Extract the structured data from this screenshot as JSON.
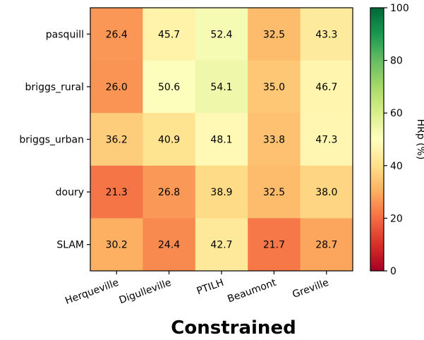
{
  "chart_data": {
    "type": "heatmap",
    "title": "Constrained",
    "columns": [
      "Herqueville",
      "Digulleville",
      "PTILH",
      "Beaumont",
      "Greville"
    ],
    "rows": [
      "pasquill",
      "briggs_rural",
      "briggs_urban",
      "doury",
      "SLAM"
    ],
    "values": [
      [
        26.4,
        45.7,
        52.4,
        32.5,
        43.3
      ],
      [
        26.0,
        50.6,
        54.1,
        35.0,
        46.7
      ],
      [
        36.2,
        40.9,
        48.1,
        33.8,
        47.3
      ],
      [
        21.3,
        26.8,
        38.9,
        32.5,
        38.0
      ],
      [
        30.2,
        24.4,
        42.7,
        21.7,
        28.7
      ]
    ],
    "value_labels": [
      [
        "26.4",
        "45.7",
        "52.4",
        "32.5",
        "43.3"
      ],
      [
        "26.0",
        "50.6",
        "54.1",
        "35.0",
        "46.7"
      ],
      [
        "36.2",
        "40.9",
        "48.1",
        "33.8",
        "47.3"
      ],
      [
        "21.3",
        "26.8",
        "38.9",
        "32.5",
        "38.0"
      ],
      [
        "30.2",
        "24.4",
        "42.7",
        "21.7",
        "28.7"
      ]
    ],
    "colorbar": {
      "label": "HRp (%)",
      "range": [
        0,
        100
      ],
      "ticks": [
        0,
        20,
        40,
        60,
        80,
        100
      ],
      "tick_labels": [
        "0",
        "20",
        "40",
        "60",
        "80",
        "100"
      ],
      "colormap": "RdYlGn"
    },
    "grid": false
  }
}
